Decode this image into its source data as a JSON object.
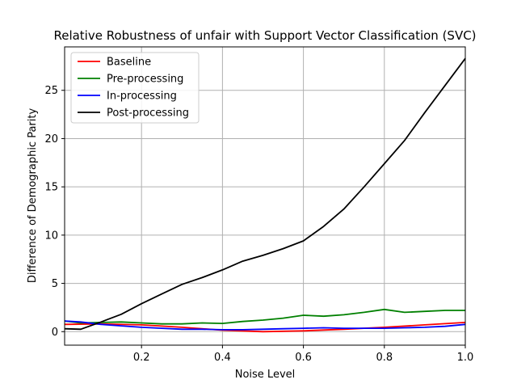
{
  "chart_data": {
    "type": "line",
    "title": "Relative Robustness of unfair with Support Vector Classification (SVC)",
    "xlabel": "Noise Level",
    "ylabel": "Difference of Demographic Parity",
    "xlim": [
      0.01,
      1.0
    ],
    "ylim": [
      -1.4,
      29.5
    ],
    "xticks": [
      0.2,
      0.4,
      0.6,
      0.8,
      1.0
    ],
    "xtick_labels": [
      "0.2",
      "0.4",
      "0.6",
      "0.8",
      "1.0"
    ],
    "yticks": [
      0,
      5,
      10,
      15,
      20,
      25
    ],
    "ytick_labels": [
      "0",
      "5",
      "10",
      "15",
      "20",
      "25"
    ],
    "grid": true,
    "legend_position": "top-left",
    "series": [
      {
        "name": "Baseline",
        "color": "#ff0000",
        "x": [
          0.01,
          0.1,
          0.2,
          0.3,
          0.4,
          0.5,
          0.6,
          0.7,
          0.8,
          0.9,
          1.0
        ],
        "y": [
          0.75,
          0.8,
          0.7,
          0.45,
          0.15,
          0.0,
          0.08,
          0.25,
          0.45,
          0.7,
          0.95
        ]
      },
      {
        "name": "Pre-processing",
        "color": "#008000",
        "x": [
          0.01,
          0.05,
          0.1,
          0.15,
          0.2,
          0.25,
          0.3,
          0.35,
          0.4,
          0.45,
          0.5,
          0.55,
          0.6,
          0.65,
          0.7,
          0.75,
          0.8,
          0.85,
          0.9,
          0.95,
          1.0
        ],
        "y": [
          1.1,
          0.9,
          0.95,
          1.0,
          0.9,
          0.8,
          0.8,
          0.9,
          0.85,
          1.05,
          1.2,
          1.4,
          1.7,
          1.6,
          1.75,
          2.0,
          2.3,
          2.0,
          2.1,
          2.2,
          2.2
        ]
      },
      {
        "name": "In-processing",
        "color": "#0000ff",
        "x": [
          0.01,
          0.05,
          0.1,
          0.15,
          0.2,
          0.25,
          0.3,
          0.35,
          0.4,
          0.45,
          0.5,
          0.55,
          0.6,
          0.65,
          0.7,
          0.75,
          0.8,
          0.85,
          0.9,
          0.95,
          1.0
        ],
        "y": [
          1.1,
          1.0,
          0.75,
          0.6,
          0.45,
          0.35,
          0.25,
          0.25,
          0.2,
          0.2,
          0.25,
          0.3,
          0.35,
          0.4,
          0.35,
          0.35,
          0.35,
          0.4,
          0.45,
          0.55,
          0.75
        ]
      },
      {
        "name": "Post-processing",
        "color": "#000000",
        "x": [
          0.01,
          0.05,
          0.1,
          0.15,
          0.2,
          0.25,
          0.3,
          0.35,
          0.4,
          0.45,
          0.5,
          0.55,
          0.6,
          0.65,
          0.7,
          0.75,
          0.8,
          0.85,
          0.9,
          0.95,
          1.0
        ],
        "y": [
          0.3,
          0.25,
          1.0,
          1.8,
          2.9,
          3.9,
          4.9,
          5.6,
          6.4,
          7.3,
          7.9,
          8.6,
          9.4,
          10.9,
          12.7,
          15.0,
          17.4,
          19.8,
          22.7,
          25.5,
          28.3
        ]
      }
    ]
  }
}
